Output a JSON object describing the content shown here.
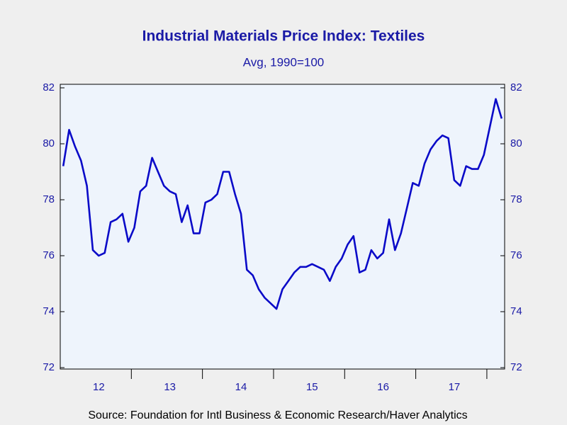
{
  "chart_data": {
    "type": "line",
    "title": "Industrial Materials Price Index: Textiles",
    "subtitle": "Avg, 1990=100",
    "source": "Source:  Foundation for Intl Business & Economic Research/Haver Analytics",
    "categories": [
      null,
      null,
      null,
      null,
      null,
      null,
      "12",
      null,
      null,
      null,
      null,
      null,
      null,
      null,
      null,
      null,
      null,
      null,
      "13",
      null,
      null,
      null,
      null,
      null,
      null,
      null,
      null,
      null,
      null,
      null,
      "14",
      null,
      null,
      null,
      null,
      null,
      null,
      null,
      null,
      null,
      null,
      null,
      "15",
      null,
      null,
      null,
      null,
      null,
      null,
      null,
      null,
      null,
      null,
      null,
      "16",
      null,
      null,
      null,
      null,
      null,
      null,
      null,
      null,
      null,
      null,
      null,
      "17",
      null,
      null,
      null,
      null,
      null,
      null,
      null,
      null
    ],
    "series": [
      {
        "name": "Textiles",
        "color": "#0a0ac8",
        "values": [
          79.2,
          80.5,
          79.9,
          79.4,
          78.5,
          76.2,
          76.0,
          76.1,
          77.2,
          77.3,
          77.5,
          76.5,
          77.0,
          78.3,
          78.5,
          79.5,
          79.0,
          78.5,
          78.3,
          78.2,
          77.2,
          77.8,
          76.8,
          76.8,
          77.9,
          78.0,
          78.2,
          79.0,
          79.0,
          78.2,
          77.5,
          75.5,
          75.3,
          74.8,
          74.5,
          74.3,
          74.1,
          74.8,
          75.1,
          75.4,
          75.6,
          75.6,
          75.7,
          75.6,
          75.5,
          75.1,
          75.6,
          75.9,
          76.4,
          76.7,
          75.4,
          75.5,
          76.2,
          75.9,
          76.1,
          77.3,
          76.2,
          76.8,
          77.7,
          78.6,
          78.5,
          79.3,
          79.8,
          80.1,
          80.3,
          80.2,
          78.7,
          78.5,
          79.2,
          79.1,
          79.1,
          79.6,
          80.6,
          81.6,
          80.9
        ]
      }
    ],
    "ylim": [
      72,
      82
    ],
    "yticks": [
      72,
      74,
      76,
      78,
      80,
      82
    ]
  }
}
